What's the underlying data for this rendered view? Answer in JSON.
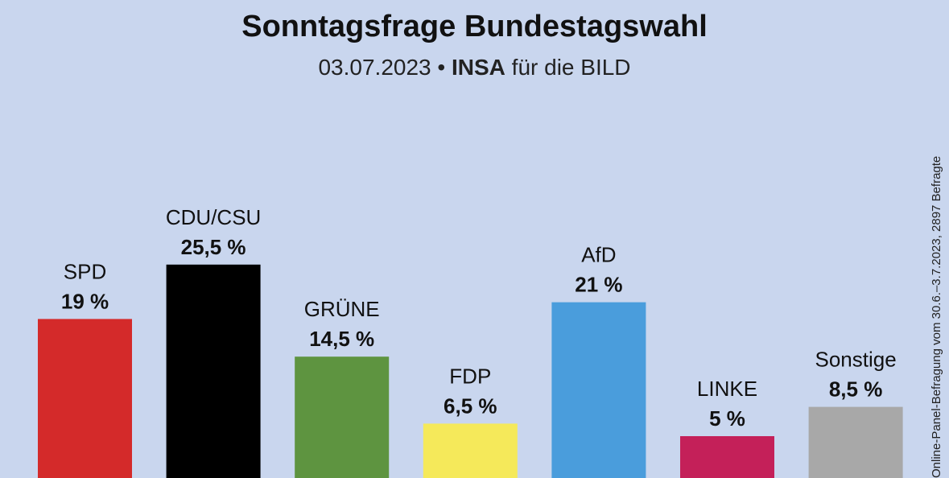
{
  "title": "Sonntagsfrage Bundestagswahl",
  "subtitle": {
    "date": "03.07.2023",
    "separator": "•",
    "institute": "INSA",
    "client": "für die BILD"
  },
  "side_note": "Online-Panel-Befragung vom 30.6.–3.7.2023, 2897 Befragte",
  "colors": {
    "background": "#c9d6ee",
    "SPD": "#d42a2a",
    "CDU/CSU": "#000000",
    "GRÜNE": "#5e9440",
    "FDP": "#f5e95a",
    "AfD": "#4a9ddc",
    "LINKE": "#c42059",
    "Sonstige": "#a8a8a8"
  },
  "chart_data": {
    "type": "bar",
    "title": "Sonntagsfrage Bundestagswahl",
    "categories": [
      "SPD",
      "CDU/CSU",
      "GRÜNE",
      "FDP",
      "AfD",
      "LINKE",
      "Sonstige"
    ],
    "values": [
      19,
      25.5,
      14.5,
      6.5,
      21,
      5,
      8.5
    ],
    "value_labels": [
      "19 %",
      "25,5 %",
      "14,5 %",
      "6,5 %",
      "21 %",
      "5 %",
      "8,5 %"
    ],
    "xlabel": "",
    "ylabel": "",
    "grid": false,
    "legend": "none"
  }
}
